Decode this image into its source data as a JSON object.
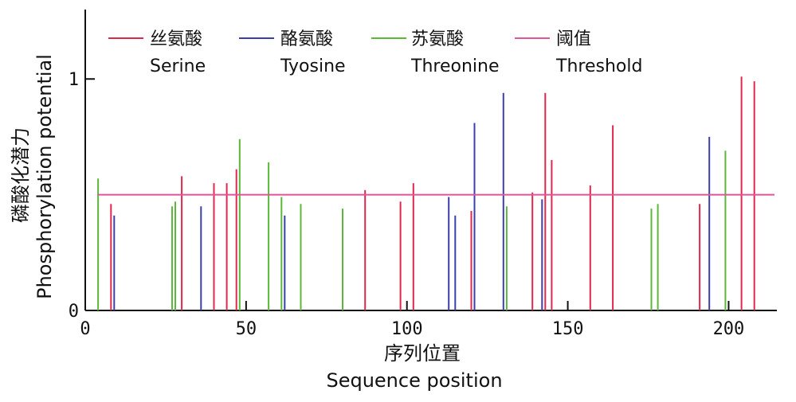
{
  "chart_data": {
    "type": "bar",
    "xlabel": "序列位置",
    "xlabel_en": "Sequence position",
    "ylabel": "磷酸化潜力",
    "ylabel_en": "Phosphorylation potential",
    "xlim": [
      0,
      215
    ],
    "ylim": [
      0,
      1.3
    ],
    "xticks": [
      0,
      50,
      100,
      150,
      200
    ],
    "yticks": [
      0,
      1
    ],
    "legend_position": "top",
    "threshold": {
      "name": "阈值",
      "name_en": "Threshold",
      "value": 0.5,
      "color": "#e0559a"
    },
    "series": [
      {
        "name": "丝氨酸",
        "name_en": "Serine",
        "color": "#e0284f",
        "x": [
          8,
          30,
          40,
          44,
          47,
          87,
          98,
          102,
          120,
          139,
          143,
          145,
          157,
          164,
          191,
          204,
          208
        ],
        "y": [
          0.46,
          0.58,
          0.55,
          0.55,
          0.61,
          0.52,
          0.47,
          0.55,
          0.43,
          0.51,
          0.94,
          0.65,
          0.54,
          0.8,
          0.46,
          1.01,
          0.99
        ]
      },
      {
        "name": "酪氨酸",
        "name_en": "Tyosine",
        "color": "#3d3fa8",
        "x": [
          9,
          36,
          62,
          113,
          115,
          121,
          130,
          142,
          194
        ],
        "y": [
          0.41,
          0.45,
          0.41,
          0.49,
          0.41,
          0.81,
          0.94,
          0.48,
          0.75
        ]
      },
      {
        "name": "苏氨酸",
        "name_en": "Threonine",
        "color": "#5cb83a",
        "x": [
          4,
          27,
          28,
          48,
          57,
          61,
          67,
          80,
          131,
          176,
          178,
          199
        ],
        "y": [
          0.57,
          0.45,
          0.47,
          0.74,
          0.64,
          0.49,
          0.46,
          0.44,
          0.45,
          0.44,
          0.46,
          0.69
        ]
      }
    ]
  }
}
